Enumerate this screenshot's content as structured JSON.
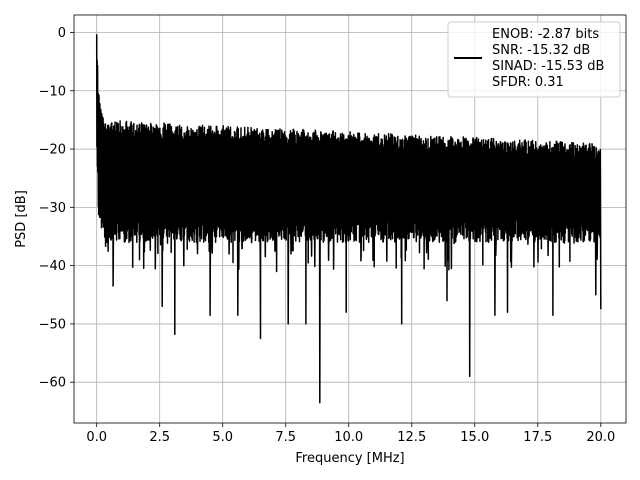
{
  "chart_data": {
    "type": "line",
    "title": "",
    "xlabel": "Frequency [MHz]",
    "ylabel": "PSD [dB]",
    "xlim": [
      -0.9,
      21.0
    ],
    "ylim": [
      -67,
      3
    ],
    "x_ticks": [
      0.0,
      2.5,
      5.0,
      7.5,
      10.0,
      12.5,
      15.0,
      17.5,
      20.0
    ],
    "x_tick_labels": [
      "0.0",
      "2.5",
      "5.0",
      "7.5",
      "10.0",
      "12.5",
      "15.0",
      "17.5",
      "20.0"
    ],
    "y_ticks": [
      0,
      -10,
      -20,
      -30,
      -40,
      -50,
      -60
    ],
    "y_tick_labels": [
      "0",
      "−10",
      "−20",
      "−30",
      "−40",
      "−50",
      "−60"
    ],
    "grid": true,
    "legend_position": "top-right",
    "legend_lines": [
      "ENOB: -2.87 bits",
      "SNR: -15.32 dB",
      "SINAD: -15.53 dB",
      "SFDR: 0.31"
    ],
    "series": [
      {
        "color": "#000000",
        "x": [
          0.0,
          0.02,
          0.04,
          0.06,
          0.08,
          0.1,
          0.12,
          0.15,
          0.18,
          0.22,
          0.26,
          0.3,
          0.35,
          0.4,
          0.45,
          0.5,
          0.6,
          0.8,
          1.0,
          1.5,
          2.0,
          3.0,
          4.0,
          5.0,
          6.0,
          7.0,
          8.0,
          9.0,
          10.0,
          11.0,
          12.0,
          13.0,
          14.0,
          15.0,
          16.0,
          17.0,
          18.0,
          19.0,
          20.0
        ],
        "values": [
          -0.3,
          -3.0,
          -6.0,
          -8.0,
          -10.0,
          -11.0,
          -12.0,
          -12.5,
          -13.0,
          -13.5,
          -14.0,
          -14.5,
          -15.0,
          -15.0,
          -15.0,
          -15.0,
          -15.0,
          -15.0,
          -15.0,
          -15.0,
          -15.0,
          -15.0,
          -15.0,
          -15.0,
          -15.0,
          -15.0,
          -15.0,
          -15.0,
          -15.0,
          -15.0,
          -15.0,
          -15.0,
          -15.0,
          -15.0,
          -15.0,
          -15.0,
          -15.0,
          -15.0,
          -15.0
        ],
        "band_bottom": [
          -17.0,
          -18.0,
          -22.0,
          -26.0,
          -28.0,
          -28.0,
          -28.5,
          -29.0,
          -30.0,
          -30.0,
          -31.0,
          -31.0,
          -32.0,
          -32.0,
          -32.0,
          -32.0,
          -32.0,
          -32.0,
          -32.0,
          -32.0,
          -32.0,
          -32.0,
          -32.0,
          -32.0,
          -32.0,
          -32.0,
          -32.0,
          -32.0,
          -32.0,
          -32.0,
          -32.0,
          -32.0,
          -32.0,
          -32.0,
          -32.0,
          -32.0,
          -32.0,
          -32.0,
          -32.0
        ],
        "dips": [
          {
            "x": 0.15,
            "y": -28.0
          },
          {
            "x": 0.4,
            "y": -36.0
          },
          {
            "x": 0.65,
            "y": -43.5
          },
          {
            "x": 1.7,
            "y": -39.0
          },
          {
            "x": 2.6,
            "y": -47.0
          },
          {
            "x": 3.1,
            "y": -51.8
          },
          {
            "x": 4.5,
            "y": -48.5
          },
          {
            "x": 5.6,
            "y": -48.5
          },
          {
            "x": 6.5,
            "y": -52.5
          },
          {
            "x": 7.6,
            "y": -50.0
          },
          {
            "x": 8.3,
            "y": -50.0
          },
          {
            "x": 8.85,
            "y": -63.5
          },
          {
            "x": 9.9,
            "y": -48.0
          },
          {
            "x": 12.1,
            "y": -50.0
          },
          {
            "x": 13.9,
            "y": -46.0
          },
          {
            "x": 14.8,
            "y": -59.0
          },
          {
            "x": 15.8,
            "y": -48.5
          },
          {
            "x": 16.3,
            "y": -48.0
          },
          {
            "x": 18.1,
            "y": -48.5
          },
          {
            "x": 19.8,
            "y": -45.0
          },
          {
            "x": 20.0,
            "y": -47.5
          }
        ]
      }
    ]
  }
}
